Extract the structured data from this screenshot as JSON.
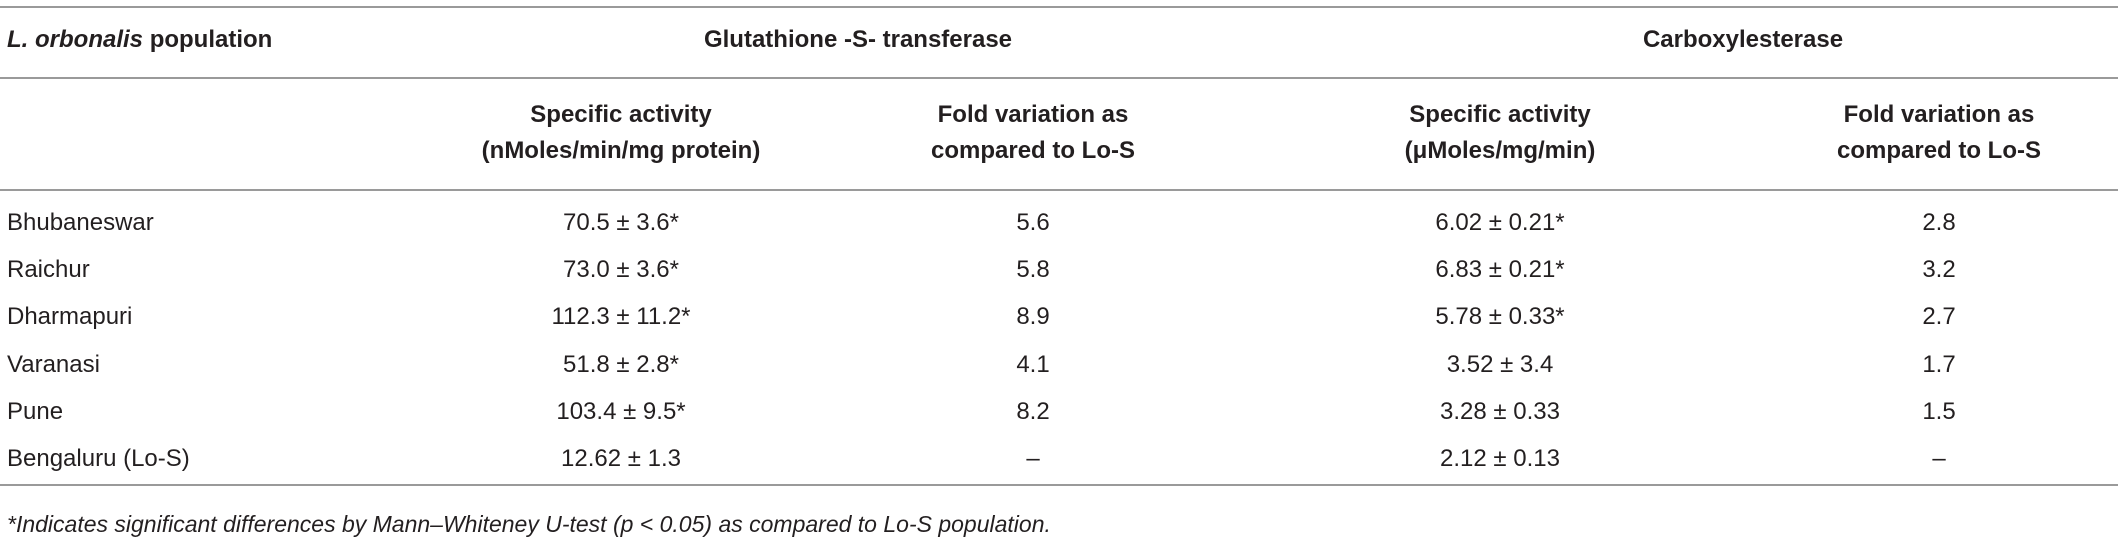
{
  "header": {
    "population": {
      "italic": "L. orbonalis",
      "text": "population"
    },
    "groups": [
      "Glutathione -S- transferase",
      "Carboxylesterase"
    ],
    "subheaders": [
      [
        "Specific activity",
        "(nMoles/min/mg protein)"
      ],
      [
        "Fold variation as",
        "compared to Lo-S"
      ],
      [
        "Specific activity",
        "(μMoles/mg/min)"
      ],
      [
        "Fold variation as",
        "compared to Lo-S"
      ]
    ]
  },
  "table": {
    "rows": [
      [
        "Bhubaneswar",
        "70.5 ± 3.6*",
        "5.6",
        "6.02 ± 0.21*",
        "2.8"
      ],
      [
        "Raichur",
        "73.0 ± 3.6*",
        "5.8",
        "6.83 ± 0.21*",
        "3.2"
      ],
      [
        "Dharmapuri",
        "112.3 ± 11.2*",
        "8.9",
        "5.78 ± 0.33*",
        "2.7"
      ],
      [
        "Varanasi",
        "51.8 ± 2.8*",
        "4.1",
        "3.52 ± 3.4",
        "1.7"
      ],
      [
        "Pune",
        "103.4 ± 9.5*",
        "8.2",
        "3.28 ± 0.33",
        "1.5"
      ],
      [
        "Bengaluru (Lo-S)",
        "12.62 ± 1.3",
        "–",
        "2.12 ± 0.13",
        "–"
      ]
    ]
  },
  "footnote": "*Indicates significant differences by Mann–Whiteney U-test (p < 0.05) as compared to Lo-S population."
}
